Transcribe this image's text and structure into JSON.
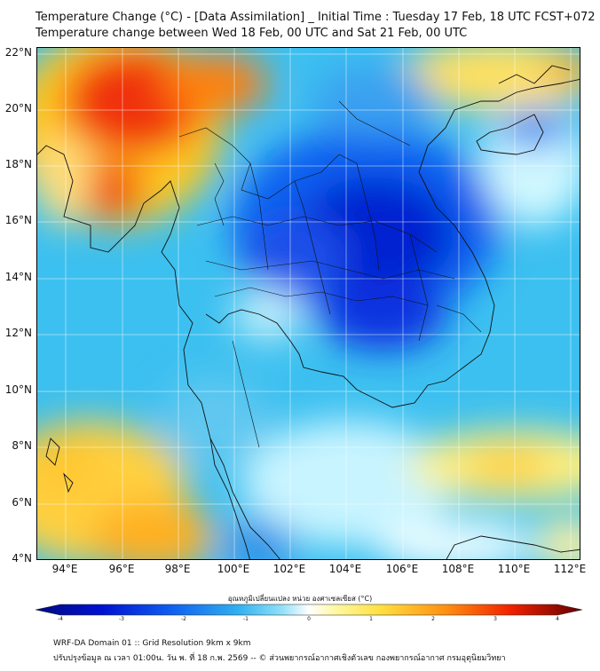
{
  "title_line1": "Temperature Change (°C) - [Data Assimilation] _ Initial Time : Tuesday 17 Feb, 18 UTC FCST+072",
  "title_line2": "Temperature change between Wed 18 Feb, 00 UTC and Sat 21 Feb, 00 UTC",
  "lat_labels": [
    "22°N",
    "20°N",
    "18°N",
    "16°N",
    "14°N",
    "12°N",
    "10°N",
    "8°N",
    "6°N",
    "4°N"
  ],
  "lon_labels": [
    "94°E",
    "96°E",
    "98°E",
    "100°E",
    "102°E",
    "104°E",
    "106°E",
    "108°E",
    "110°E",
    "112°E"
  ],
  "colorbar": {
    "caption": "อุณหภูมิเปลี่ยนแปลง หน่วย องศาเซลเซียส (°C)",
    "min": -4,
    "max": 4,
    "ticks": [
      "-4",
      "-3",
      "-2",
      "-1",
      "0",
      "1",
      "2",
      "3",
      "4"
    ]
  },
  "footer_line1": "WRF-DA Domain 01 :: Grid Resolution 9km x 9km",
  "footer_line2": "ปรับปรุงข้อมูล ณ เวลา 01:00น. วัน พ. ที่ 18 ก.พ. 2569 -- © ส่วนพยากรณ์อากาศเชิงตัวเลข กองพยากรณ์อากาศ กรมอุตุนิยมวิทยา"
}
